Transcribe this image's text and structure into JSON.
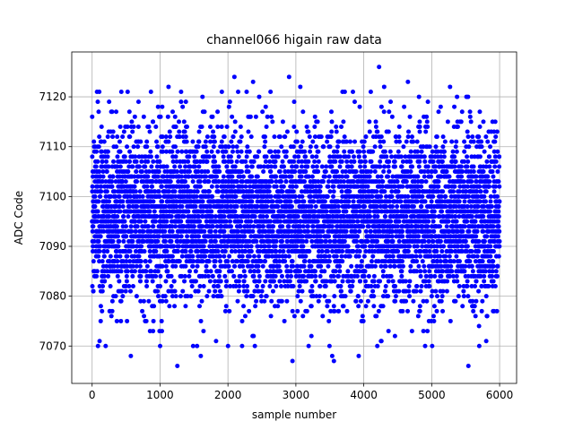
{
  "chart_data": {
    "type": "scatter",
    "title": "channel066 higain raw data",
    "xlabel": "sample number",
    "ylabel": "ADC Code",
    "xlim": [
      -300,
      6250
    ],
    "ylim": [
      7062.5,
      7129
    ],
    "xticks": [
      0,
      1000,
      2000,
      3000,
      4000,
      5000,
      6000
    ],
    "yticks": [
      7070,
      7080,
      7090,
      7100,
      7110,
      7120
    ],
    "grid": true,
    "marker_color": "#0000ff",
    "n_points": 6000,
    "value_distribution": {
      "center": 7096,
      "typical_min": 7076,
      "typical_max": 7116
    },
    "outliers": [
      {
        "x": 105,
        "y": 7121
      },
      {
        "x": 110,
        "y": 7071
      },
      {
        "x": 570,
        "y": 7068
      },
      {
        "x": 1125,
        "y": 7122
      },
      {
        "x": 1255,
        "y": 7066
      },
      {
        "x": 1310,
        "y": 7119
      },
      {
        "x": 1380,
        "y": 7119
      },
      {
        "x": 1545,
        "y": 7070
      },
      {
        "x": 1600,
        "y": 7068
      },
      {
        "x": 2095,
        "y": 7124
      },
      {
        "x": 2150,
        "y": 7121
      },
      {
        "x": 2370,
        "y": 7123
      },
      {
        "x": 2460,
        "y": 7120
      },
      {
        "x": 2900,
        "y": 7124
      },
      {
        "x": 2950,
        "y": 7067
      },
      {
        "x": 3065,
        "y": 7122
      },
      {
        "x": 3535,
        "y": 7068
      },
      {
        "x": 3560,
        "y": 7067
      },
      {
        "x": 3840,
        "y": 7121
      },
      {
        "x": 3925,
        "y": 7068
      },
      {
        "x": 4225,
        "y": 7126
      },
      {
        "x": 4260,
        "y": 7071
      },
      {
        "x": 4300,
        "y": 7122
      },
      {
        "x": 4395,
        "y": 7119
      },
      {
        "x": 4650,
        "y": 7123
      },
      {
        "x": 5270,
        "y": 7122
      },
      {
        "x": 5540,
        "y": 7066
      },
      {
        "x": 5700,
        "y": 7070
      }
    ]
  }
}
